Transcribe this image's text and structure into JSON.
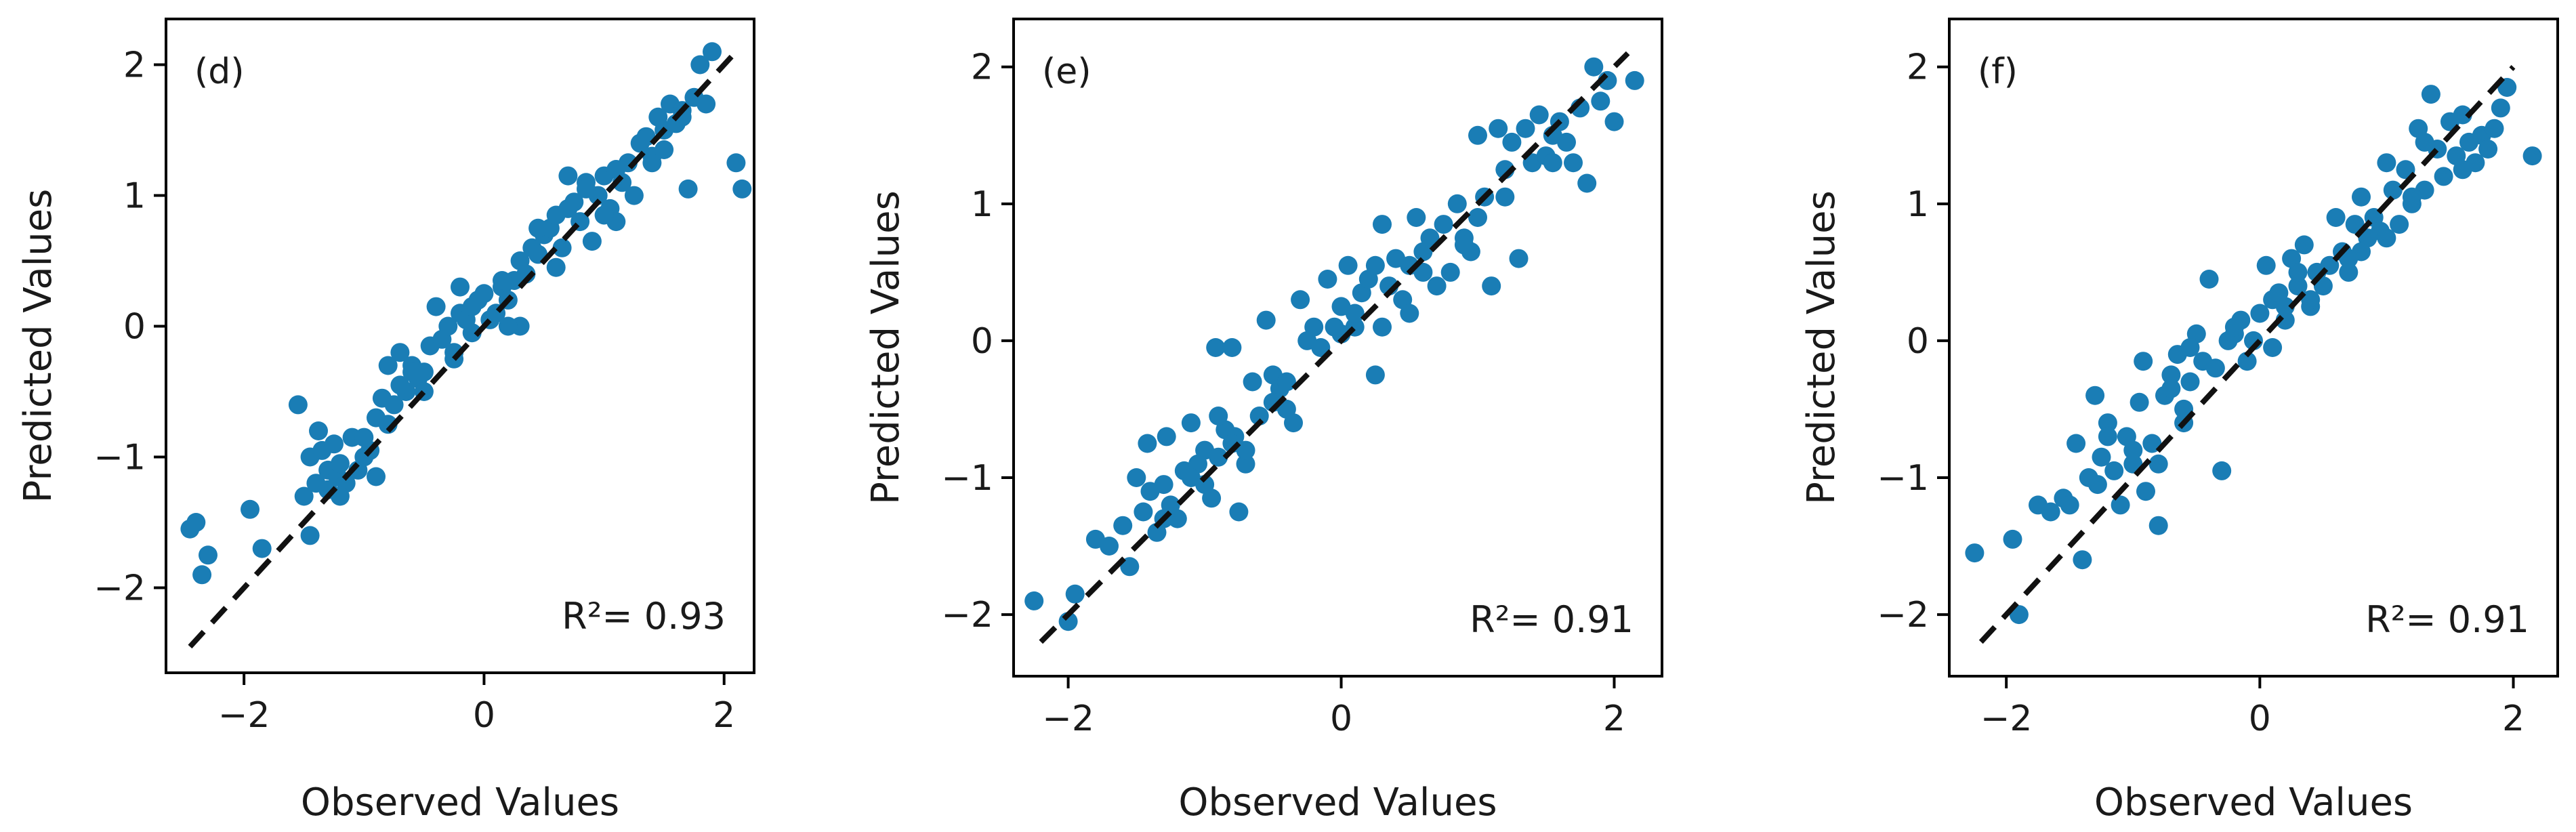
{
  "figure": {
    "style": {
      "point_color": "#1a7db5",
      "line_color": "#111111",
      "frame_color": "#000000"
    }
  },
  "chart_data": [
    {
      "type": "scatter",
      "panel_label": "(d)",
      "xlabel": "Observed Values",
      "ylabel": "Predicted Values",
      "xlim": [
        -2.65,
        2.25
      ],
      "ylim": [
        -2.65,
        2.35
      ],
      "xticks": [
        -2,
        0,
        2
      ],
      "yticks": [
        -2,
        -1,
        0,
        1,
        2
      ],
      "xtick_labels": [
        "−2",
        "0",
        "2"
      ],
      "ytick_labels": [
        "−2",
        "−1",
        "0",
        "1",
        "2"
      ],
      "annotation": {
        "text": "R²= 0.93",
        "r2": 0.93
      },
      "reference_line": {
        "style": "dashed",
        "x": [
          -2.45,
          2.1
        ],
        "y": [
          -2.45,
          2.1
        ]
      },
      "points": {
        "x": [
          -2.45,
          -2.4,
          -2.35,
          -2.3,
          -1.95,
          -1.85,
          -1.55,
          -1.5,
          -1.45,
          -1.45,
          -1.4,
          -1.38,
          -1.35,
          -1.3,
          -1.3,
          -1.25,
          -1.22,
          -1.2,
          -1.15,
          -1.1,
          -1.05,
          -1.0,
          -0.95,
          -0.9,
          -0.85,
          -0.8,
          -0.8,
          -0.75,
          -0.7,
          -0.65,
          -0.6,
          -0.55,
          -0.5,
          -0.45,
          -0.4,
          -0.35,
          -0.3,
          -0.25,
          -0.2,
          -0.15,
          -0.1,
          -0.05,
          0.0,
          0.05,
          0.1,
          0.15,
          0.2,
          0.25,
          0.3,
          0.35,
          0.4,
          0.45,
          0.5,
          0.55,
          0.6,
          0.65,
          0.7,
          0.75,
          0.8,
          0.85,
          0.9,
          0.95,
          1.0,
          1.05,
          1.1,
          1.15,
          1.2,
          1.25,
          1.3,
          1.35,
          1.4,
          1.45,
          1.5,
          1.55,
          1.6,
          1.65,
          1.7,
          1.75,
          1.8,
          1.85,
          1.9,
          2.1,
          2.15,
          -1.2,
          -0.9,
          -0.5,
          -0.1,
          0.3,
          0.7,
          1.1,
          1.5,
          -1.0,
          -0.6,
          -0.2,
          0.2,
          0.6,
          1.0,
          1.4,
          -0.7,
          0.15,
          0.85,
          1.65,
          -0.25,
          0.45
        ],
        "y": [
          -1.55,
          -1.5,
          -1.9,
          -1.75,
          -1.4,
          -1.7,
          -0.6,
          -1.3,
          -1.0,
          -1.6,
          -1.2,
          -0.8,
          -0.95,
          -1.1,
          -1.25,
          -0.9,
          -1.15,
          -1.05,
          -1.2,
          -0.85,
          -1.1,
          -1.0,
          -0.95,
          -0.7,
          -0.55,
          -0.3,
          -0.75,
          -0.6,
          -0.2,
          -0.5,
          -0.3,
          -0.4,
          -0.35,
          -0.15,
          0.15,
          -0.1,
          0.0,
          -0.2,
          0.1,
          0.05,
          -0.05,
          0.2,
          0.25,
          0.05,
          0.1,
          0.3,
          0.2,
          0.35,
          0.5,
          0.4,
          0.6,
          0.55,
          0.7,
          0.75,
          0.85,
          0.6,
          0.9,
          0.95,
          0.8,
          1.1,
          0.65,
          1.0,
          1.15,
          0.9,
          1.2,
          1.1,
          1.25,
          1.0,
          1.4,
          1.45,
          1.3,
          1.6,
          1.5,
          1.7,
          1.55,
          1.65,
          1.05,
          1.75,
          2.0,
          1.7,
          2.1,
          1.25,
          1.05,
          -1.3,
          -1.15,
          -0.5,
          0.15,
          0.0,
          1.15,
          0.8,
          1.35,
          -0.85,
          -0.35,
          0.3,
          0.0,
          0.45,
          0.85,
          1.25,
          -0.45,
          0.35,
          1.05,
          1.6,
          -0.25,
          0.75
        ]
      }
    },
    {
      "type": "scatter",
      "panel_label": "(e)",
      "xlabel": "Observed Values",
      "ylabel": "Predicted Values",
      "xlim": [
        -2.4,
        2.35
      ],
      "ylim": [
        -2.45,
        2.35
      ],
      "xticks": [
        -2,
        0,
        2
      ],
      "yticks": [
        -2,
        -1,
        0,
        1,
        2
      ],
      "xtick_labels": [
        "−2",
        "0",
        "2"
      ],
      "ytick_labels": [
        "−2",
        "−1",
        "0",
        "1",
        "2"
      ],
      "annotation": {
        "text": "R²= 0.91",
        "r2": 0.91
      },
      "reference_line": {
        "style": "dashed",
        "x": [
          -2.2,
          2.1
        ],
        "y": [
          -2.2,
          2.1
        ]
      },
      "points": {
        "x": [
          -2.25,
          -2.0,
          -1.95,
          -1.8,
          -1.7,
          -1.6,
          -1.55,
          -1.5,
          -1.45,
          -1.42,
          -1.4,
          -1.35,
          -1.3,
          -1.28,
          -1.25,
          -1.2,
          -1.15,
          -1.1,
          -1.05,
          -1.0,
          -0.95,
          -0.92,
          -0.9,
          -0.85,
          -0.8,
          -0.78,
          -0.75,
          -0.7,
          -0.65,
          -0.6,
          -0.55,
          -0.5,
          -0.45,
          -0.4,
          -0.35,
          -0.3,
          -0.25,
          -0.2,
          -0.15,
          -0.1,
          -0.05,
          0.0,
          0.05,
          0.1,
          0.15,
          0.2,
          0.25,
          0.3,
          0.35,
          0.4,
          0.45,
          0.5,
          0.55,
          0.6,
          0.65,
          0.7,
          0.75,
          0.8,
          0.85,
          0.9,
          0.95,
          1.0,
          1.05,
          1.1,
          1.15,
          1.2,
          1.25,
          1.3,
          1.35,
          1.4,
          1.45,
          1.5,
          1.55,
          1.6,
          1.65,
          1.7,
          1.75,
          1.8,
          1.85,
          1.9,
          1.95,
          2.0,
          2.15,
          -1.3,
          -1.0,
          -0.7,
          -0.4,
          0.0,
          0.3,
          0.6,
          0.9,
          1.2,
          -1.1,
          -0.8,
          -0.5,
          0.1,
          0.5,
          1.0,
          -0.9,
          0.25,
          1.55
        ],
        "y": [
          -1.9,
          -2.05,
          -1.85,
          -1.45,
          -1.5,
          -1.35,
          -1.65,
          -1.0,
          -1.25,
          -0.75,
          -1.1,
          -1.4,
          -1.05,
          -0.7,
          -1.2,
          -1.3,
          -0.95,
          -0.6,
          -0.9,
          -0.8,
          -1.15,
          -0.05,
          -0.85,
          -0.65,
          -0.05,
          -0.7,
          -1.25,
          -0.9,
          -0.3,
          -0.55,
          0.15,
          -0.25,
          -0.35,
          -0.5,
          -0.6,
          0.3,
          0.0,
          0.1,
          -0.05,
          0.45,
          0.1,
          0.25,
          0.55,
          0.1,
          0.35,
          0.45,
          -0.25,
          0.85,
          0.4,
          0.6,
          0.3,
          0.2,
          0.9,
          0.65,
          0.75,
          0.4,
          0.85,
          0.5,
          1.0,
          0.75,
          0.65,
          1.5,
          1.05,
          0.4,
          1.55,
          1.25,
          1.45,
          0.6,
          1.55,
          1.3,
          1.65,
          1.35,
          1.5,
          1.6,
          1.45,
          1.3,
          1.7,
          1.15,
          2.0,
          1.75,
          1.9,
          1.6,
          1.9,
          -1.3,
          -1.05,
          -0.8,
          -0.3,
          0.05,
          0.1,
          0.5,
          0.7,
          1.05,
          -1.0,
          -0.75,
          -0.45,
          0.2,
          0.55,
          0.9,
          -0.55,
          0.55,
          1.3
        ]
      }
    },
    {
      "type": "scatter",
      "panel_label": "(f)",
      "xlabel": "Observed Values",
      "ylabel": "Predicted Values",
      "xlim": [
        -2.45,
        2.35
      ],
      "ylim": [
        -2.45,
        2.35
      ],
      "xticks": [
        -2,
        0,
        2
      ],
      "yticks": [
        -2,
        -1,
        0,
        1,
        2
      ],
      "xtick_labels": [
        "−2",
        "0",
        "2"
      ],
      "ytick_labels": [
        "−2",
        "−1",
        "0",
        "1",
        "2"
      ],
      "annotation": {
        "text": "R²= 0.91",
        "r2": 0.91
      },
      "reference_line": {
        "style": "dashed",
        "x": [
          -2.2,
          2.0
        ],
        "y": [
          -2.2,
          2.0
        ]
      },
      "points": {
        "x": [
          -2.25,
          -1.95,
          -1.9,
          -1.75,
          -1.65,
          -1.55,
          -1.5,
          -1.45,
          -1.4,
          -1.35,
          -1.3,
          -1.28,
          -1.25,
          -1.2,
          -1.15,
          -1.1,
          -1.05,
          -1.0,
          -0.95,
          -0.92,
          -0.9,
          -0.85,
          -0.8,
          -0.75,
          -0.7,
          -0.65,
          -0.6,
          -0.55,
          -0.5,
          -0.45,
          -0.4,
          -0.3,
          -0.25,
          -0.2,
          -0.15,
          -0.1,
          -0.05,
          0.0,
          0.05,
          0.1,
          0.15,
          0.2,
          0.25,
          0.3,
          0.35,
          0.4,
          0.45,
          0.5,
          0.55,
          0.6,
          0.65,
          0.7,
          0.75,
          0.8,
          0.85,
          0.9,
          0.95,
          1.0,
          1.05,
          1.1,
          1.15,
          1.2,
          1.25,
          1.3,
          1.35,
          1.4,
          1.45,
          1.5,
          1.55,
          1.6,
          1.65,
          1.7,
          1.75,
          1.8,
          1.85,
          1.9,
          1.95,
          2.15,
          -1.2,
          -0.8,
          -0.6,
          -0.2,
          0.1,
          0.4,
          0.7,
          1.0,
          1.3,
          -1.0,
          -0.7,
          -0.35,
          0.2,
          0.8,
          1.2,
          -0.55,
          0.3,
          1.6
        ],
        "y": [
          -1.55,
          -1.45,
          -2.0,
          -1.2,
          -1.25,
          -1.15,
          -1.2,
          -0.75,
          -1.6,
          -1.0,
          -0.4,
          -1.05,
          -0.85,
          -0.6,
          -0.95,
          -1.2,
          -0.7,
          -0.9,
          -0.45,
          -0.15,
          -1.1,
          -0.75,
          -1.35,
          -0.4,
          -0.25,
          -0.1,
          -0.6,
          -0.3,
          0.05,
          -0.15,
          0.45,
          -0.95,
          0.0,
          0.05,
          0.15,
          -0.15,
          0.0,
          0.2,
          0.55,
          0.3,
          0.35,
          0.15,
          0.6,
          0.4,
          0.7,
          0.25,
          0.5,
          0.4,
          0.55,
          0.9,
          0.65,
          0.5,
          0.85,
          1.05,
          0.75,
          0.9,
          0.8,
          1.3,
          1.1,
          0.85,
          1.25,
          1.0,
          1.55,
          1.1,
          1.8,
          1.4,
          1.2,
          1.6,
          1.35,
          1.65,
          1.45,
          1.3,
          1.5,
          1.4,
          1.55,
          1.7,
          1.85,
          1.35,
          -0.7,
          -0.9,
          -0.5,
          0.1,
          -0.05,
          0.3,
          0.6,
          0.75,
          1.45,
          -0.8,
          -0.35,
          -0.2,
          0.25,
          0.65,
          1.05,
          -0.05,
          0.5,
          1.25
        ]
      }
    }
  ]
}
